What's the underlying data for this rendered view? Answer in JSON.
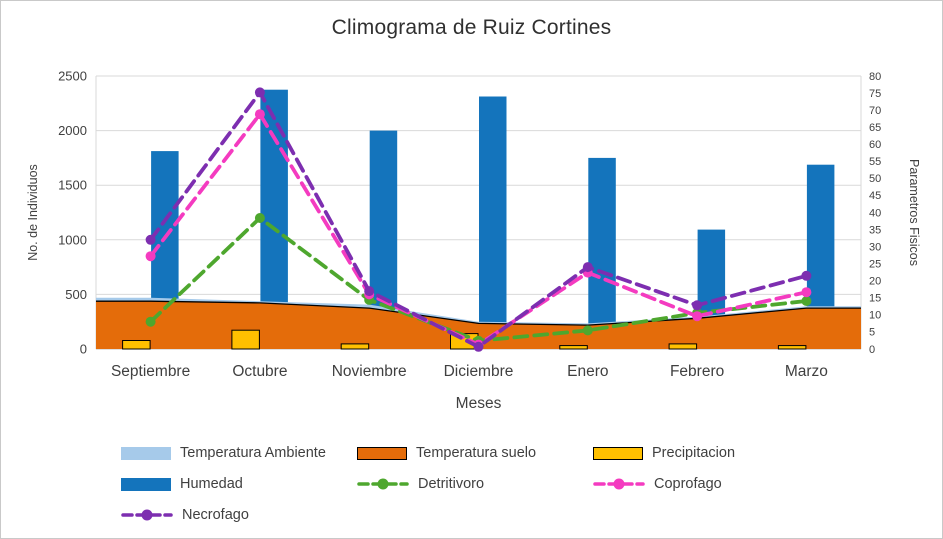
{
  "chart_data": {
    "type": "combo",
    "title": "Climograma de Ruiz Cortines",
    "xlabel": "Meses",
    "ylabel_left": "No. de Individuos",
    "ylabel_right": "Parametros Fisicos",
    "categories": [
      "Septiembre",
      "Octubre",
      "Noviembre",
      "Diciembre",
      "Enero",
      "Febrero",
      "Marzo"
    ],
    "ylim_left": [
      0,
      2500
    ],
    "ylim_right": [
      0,
      80
    ],
    "left_tick_labels": [
      "0",
      "500",
      "1000",
      "1500",
      "2000",
      "2500"
    ],
    "right_tick_labels": [
      "0",
      "5",
      "10",
      "15",
      "20",
      "25",
      "30",
      "35",
      "40",
      "45",
      "50",
      "55",
      "60",
      "65",
      "70",
      "75",
      "80"
    ],
    "grid": "horizontal",
    "legend_position": "bottom",
    "colors": {
      "grid": "#D9D9D9",
      "axis_text": "#404040",
      "title_text": "#303030"
    },
    "series": [
      {
        "name": "Temperatura Ambiente",
        "type": "area",
        "axis": "right",
        "color": "#A6CAEA",
        "outline": null,
        "values": [
          15,
          14,
          13,
          8,
          7.5,
          9.5,
          12.5
        ]
      },
      {
        "name": "Temperatura suelo",
        "type": "area",
        "axis": "right",
        "color": "#E46C0A",
        "outline": "#000000",
        "values": [
          14,
          13.5,
          12,
          7.5,
          7,
          9,
          12
        ]
      },
      {
        "name": "Precipitacion",
        "type": "bar",
        "axis": "right",
        "color": "#FFC000",
        "outline": "#000000",
        "values": [
          2.5,
          5.5,
          1.5,
          4.5,
          1,
          1.5,
          1
        ]
      },
      {
        "name": "Humedad",
        "type": "bar",
        "axis": "right",
        "color": "#1474BC",
        "outline": null,
        "values": [
          58,
          76,
          64,
          74,
          56,
          35,
          54
        ]
      },
      {
        "name": "Detritivoro",
        "type": "line",
        "axis": "left",
        "color": "#4EA72E",
        "dash": true,
        "values": [
          250,
          1200,
          450,
          75,
          170,
          330,
          440
        ]
      },
      {
        "name": "Coprofago",
        "type": "line",
        "axis": "left",
        "color": "#F43BC0",
        "dash": true,
        "values": [
          850,
          2150,
          500,
          40,
          700,
          300,
          520
        ]
      },
      {
        "name": "Necrofago",
        "type": "line",
        "axis": "left",
        "color": "#7D2EB0",
        "dash": true,
        "values": [
          1000,
          2350,
          530,
          20,
          750,
          400,
          670
        ]
      }
    ],
    "legend_rows": [
      [
        "Temperatura Ambiente",
        "Temperatura suelo",
        "Precipitacion"
      ],
      [
        "Humedad",
        "Detritivoro",
        "Coprofago"
      ],
      [
        "Necrofago"
      ]
    ]
  }
}
